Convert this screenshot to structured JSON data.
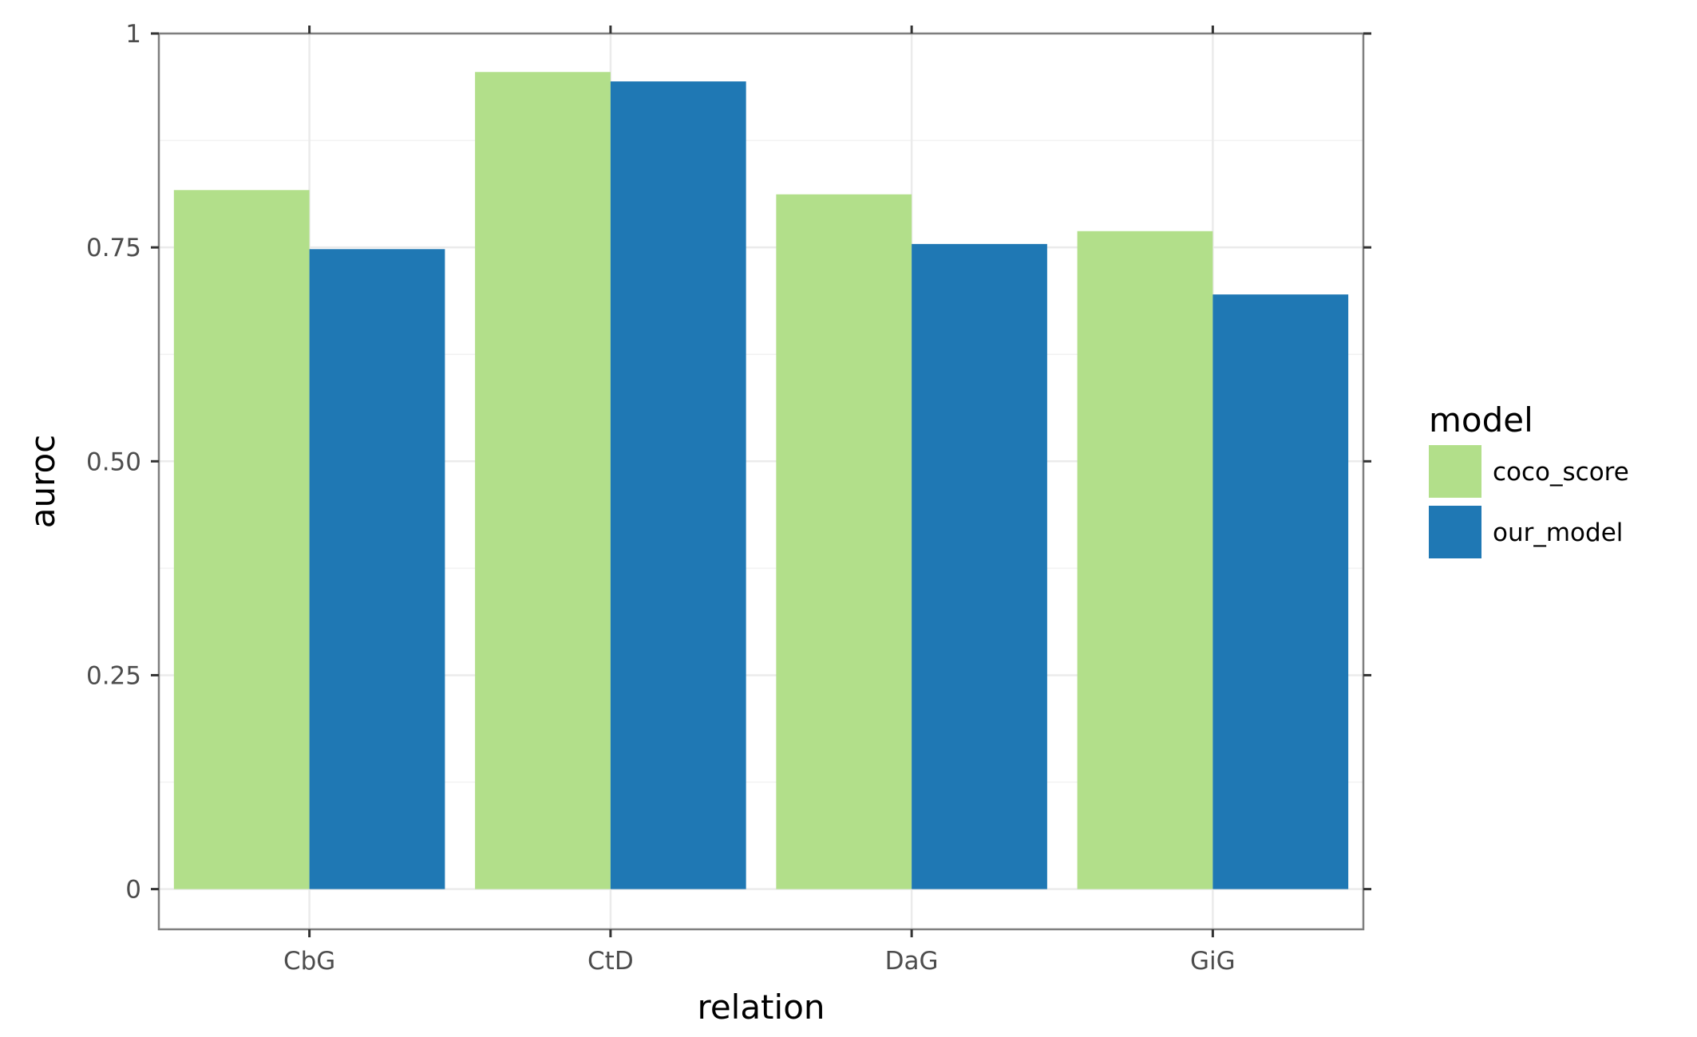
{
  "chart_data": {
    "type": "bar",
    "categories": [
      "CbG",
      "CtD",
      "DaG",
      "GiG"
    ],
    "series": [
      {
        "name": "coco_score",
        "color": "#b2df8a",
        "values": [
          0.817,
          0.955,
          0.812,
          0.769
        ]
      },
      {
        "name": "our_model",
        "color": "#1f78b4",
        "values": [
          0.748,
          0.944,
          0.754,
          0.695
        ]
      }
    ],
    "xlabel": "relation",
    "ylabel": "auroc",
    "ylim": [
      -0.047,
      1.0
    ],
    "yticks": [
      0,
      0.25,
      0.5,
      0.75,
      1
    ],
    "ytick_labels": [
      "0",
      "0.25",
      "0.50",
      "0.75",
      "1"
    ],
    "grid": true,
    "legend": {
      "title": "model",
      "position": "right"
    }
  }
}
